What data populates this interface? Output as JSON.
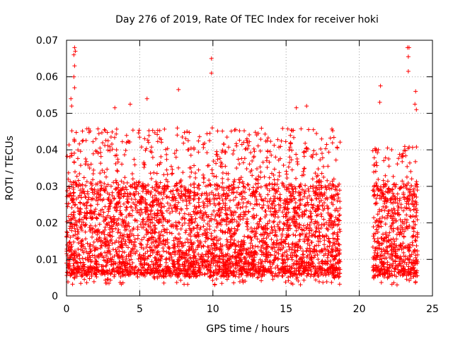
{
  "chart_data": {
    "type": "scatter",
    "title": "Day 276 of 2019, Rate Of TEC Index for receiver hoki",
    "xlabel": "GPS time / hours",
    "ylabel": "ROTI / TECUs",
    "xlim": [
      0,
      25
    ],
    "ylim": [
      0,
      0.07
    ],
    "x_ticks": [
      0,
      5,
      10,
      15,
      20,
      25
    ],
    "y_ticks": [
      0,
      0.01,
      0.02,
      0.03,
      0.04,
      0.05,
      0.06,
      0.07
    ],
    "x_tick_labels": [
      "0",
      "5",
      "10",
      "15",
      "20",
      "25"
    ],
    "y_tick_labels": [
      "0",
      "0.01",
      "0.02",
      "0.03",
      "0.04",
      "0.05",
      "0.06",
      "0.07"
    ],
    "grid": true,
    "marker": "+",
    "color": "#ff0000",
    "series": [
      {
        "name": "ROTI",
        "segments": [
          {
            "x_start": 0.0,
            "x_end": 18.7,
            "typical_low": 0.005,
            "typical_high": 0.03,
            "max": 0.05
          },
          {
            "x_start": 20.9,
            "x_end": 24.0,
            "typical_low": 0.005,
            "typical_high": 0.03,
            "max": 0.045
          }
        ],
        "outliers": [
          {
            "x": 0.55,
            "y": 0.068
          },
          {
            "x": 0.6,
            "y": 0.067
          },
          {
            "x": 0.5,
            "y": 0.066
          },
          {
            "x": 0.55,
            "y": 0.063
          },
          {
            "x": 0.5,
            "y": 0.06
          },
          {
            "x": 0.55,
            "y": 0.057
          },
          {
            "x": 0.3,
            "y": 0.054
          },
          {
            "x": 0.35,
            "y": 0.052
          },
          {
            "x": 9.9,
            "y": 0.065
          },
          {
            "x": 9.9,
            "y": 0.061
          },
          {
            "x": 7.65,
            "y": 0.0565
          },
          {
            "x": 5.5,
            "y": 0.054
          },
          {
            "x": 23.3,
            "y": 0.068
          },
          {
            "x": 23.4,
            "y": 0.068
          },
          {
            "x": 23.35,
            "y": 0.0655
          },
          {
            "x": 23.35,
            "y": 0.0615
          },
          {
            "x": 23.85,
            "y": 0.056
          },
          {
            "x": 21.45,
            "y": 0.0575
          },
          {
            "x": 21.4,
            "y": 0.053
          },
          {
            "x": 23.8,
            "y": 0.0525
          },
          {
            "x": 23.9,
            "y": 0.051
          },
          {
            "x": 16.4,
            "y": 0.052
          },
          {
            "x": 15.7,
            "y": 0.0515
          },
          {
            "x": 3.3,
            "y": 0.0515
          },
          {
            "x": 4.35,
            "y": 0.0525
          },
          {
            "x": 2.0,
            "y": 0.043
          },
          {
            "x": 0.2,
            "y": 0.0295
          }
        ]
      }
    ]
  }
}
